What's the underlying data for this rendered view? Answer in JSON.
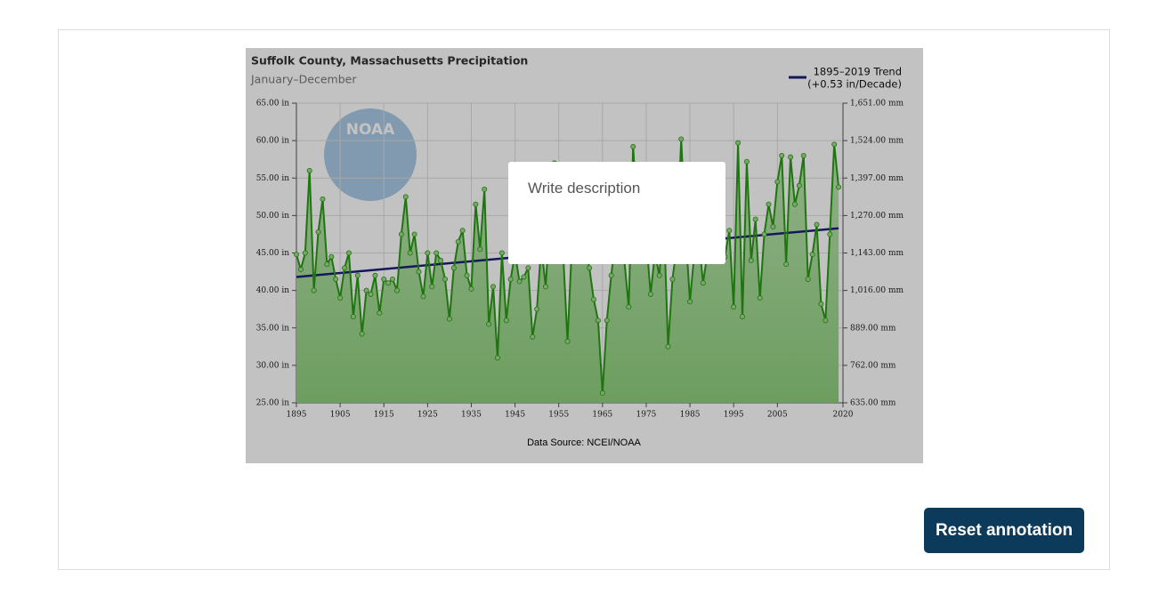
{
  "chart_data": {
    "type": "line",
    "title": "Suffolk County, Massachusetts Precipitation",
    "subtitle": "January–December",
    "source": "Data Source: NCEI/NOAA",
    "logo_text": "NOAA",
    "legend_note": "(+0.53 in/Decade)",
    "xlim": [
      1895,
      2020
    ],
    "xticks": [
      1895,
      1905,
      1915,
      1925,
      1935,
      1945,
      1955,
      1965,
      1975,
      1985,
      1995,
      2005,
      2020
    ],
    "ylim": [
      25,
      65
    ],
    "yticks": [
      {
        "value": 25,
        "label": "25.00 in"
      },
      {
        "value": 30,
        "label": "30.00 in"
      },
      {
        "value": 35,
        "label": "35.00 in"
      },
      {
        "value": 40,
        "label": "40.00 in"
      },
      {
        "value": 45,
        "label": "45.00 in"
      },
      {
        "value": 50,
        "label": "50.00 in"
      },
      {
        "value": 55,
        "label": "55.00 in"
      },
      {
        "value": 60,
        "label": "60.00 in"
      },
      {
        "value": 65,
        "label": "65.00 in"
      }
    ],
    "y2lim": [
      635,
      1651
    ],
    "y2ticks": [
      {
        "value": 635,
        "label": "635.00 mm"
      },
      {
        "value": 762,
        "label": "762.00 mm"
      },
      {
        "value": 889,
        "label": "889.00 mm"
      },
      {
        "value": 1016,
        "label": "1,016.00 mm"
      },
      {
        "value": 1143,
        "label": "1,143.00 mm"
      },
      {
        "value": 1270,
        "label": "1,270.00 mm"
      },
      {
        "value": 1397,
        "label": "1,397.00 mm"
      },
      {
        "value": 1524,
        "label": "1,524.00 mm"
      },
      {
        "value": 1651,
        "label": "1,651.00 mm"
      }
    ],
    "grid": true,
    "legend": "upper right",
    "x": [
      1895,
      1896,
      1897,
      1898,
      1899,
      1900,
      1901,
      1902,
      1903,
      1904,
      1905,
      1906,
      1907,
      1908,
      1909,
      1910,
      1911,
      1912,
      1913,
      1914,
      1915,
      1916,
      1917,
      1918,
      1919,
      1920,
      1921,
      1922,
      1923,
      1924,
      1925,
      1926,
      1927,
      1928,
      1929,
      1930,
      1931,
      1932,
      1933,
      1934,
      1935,
      1936,
      1937,
      1938,
      1939,
      1940,
      1941,
      1942,
      1943,
      1944,
      1945,
      1946,
      1947,
      1948,
      1949,
      1950,
      1951,
      1952,
      1953,
      1954,
      1955,
      1956,
      1957,
      1958,
      1959,
      1960,
      1961,
      1962,
      1963,
      1964,
      1965,
      1966,
      1967,
      1968,
      1969,
      1970,
      1971,
      1972,
      1973,
      1974,
      1975,
      1976,
      1977,
      1978,
      1979,
      1980,
      1981,
      1982,
      1983,
      1984,
      1985,
      1986,
      1987,
      1988,
      1989,
      1990,
      1991,
      1992,
      1993,
      1994,
      1995,
      1996,
      1997,
      1998,
      1999,
      2000,
      2001,
      2002,
      2003,
      2004,
      2005,
      2006,
      2007,
      2008,
      2009,
      2010,
      2011,
      2012,
      2013,
      2014,
      2015,
      2016,
      2017,
      2018,
      2019
    ],
    "series": [
      {
        "color": "#2a9a14",
        "values": [
          44.8,
          42.8,
          45,
          56,
          40,
          47.8,
          52.2,
          43.5,
          44.5,
          41.5,
          39,
          43,
          45,
          36.5,
          42,
          34.2,
          40,
          39.5,
          42,
          37,
          41.5,
          41,
          41.5,
          40,
          47.5,
          52.5,
          45,
          47.5,
          42.5,
          39.2,
          45,
          40.5,
          45,
          44,
          41.5,
          36.2,
          43,
          46.5,
          48,
          42,
          40.2,
          51.5,
          45.5,
          53.5,
          35.5,
          40.5,
          31,
          45,
          36,
          41.5,
          45,
          41.2,
          41.8,
          43,
          33.8,
          37.5,
          46,
          40.5,
          50,
          57,
          46,
          45,
          33.2,
          46,
          48,
          45,
          46,
          43,
          38.8,
          36,
          26.3,
          36,
          42,
          47,
          49,
          44,
          37.8,
          59.2,
          50,
          44,
          47,
          39.5,
          45,
          42,
          50,
          32.5,
          41.5,
          46,
          60.2,
          48,
          38.5,
          45,
          47,
          41,
          45,
          47,
          46.5,
          45,
          44.5,
          48,
          37.8,
          59.7,
          36.5,
          57.2,
          44,
          49.5,
          39,
          47.5,
          51.5,
          48.5,
          54.5,
          58,
          43.5,
          57.8,
          51.5,
          54,
          58,
          41.5,
          44.8,
          48.8,
          38.2,
          36,
          47.5,
          59.5,
          53.8
        ]
      },
      {
        "name": "1895–2019 Trend",
        "color": "#1b1f7a",
        "x": [
          1895,
          2019
        ],
        "values": [
          41.8,
          48.3
        ]
      }
    ]
  },
  "ui": {
    "annotation_placeholder": "Write description",
    "button": "Reset annotation"
  }
}
